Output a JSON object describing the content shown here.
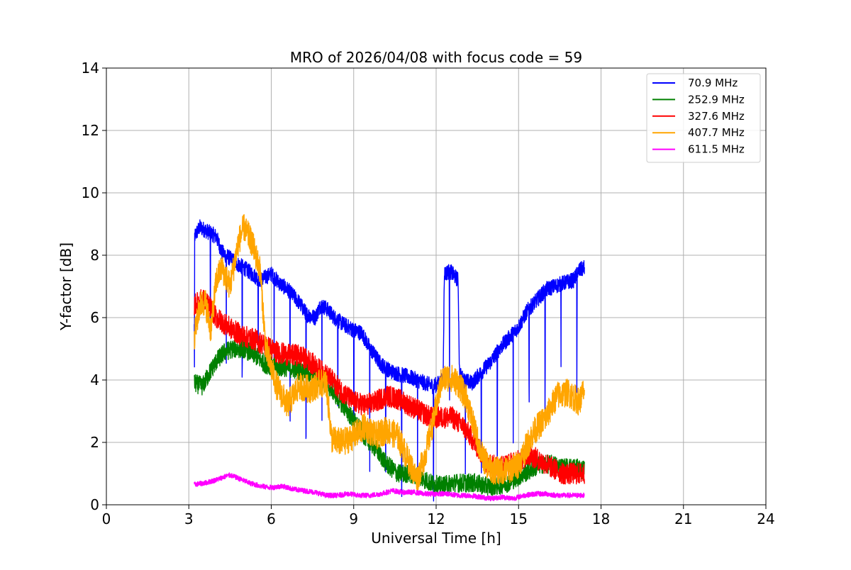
{
  "chart_data": {
    "type": "line",
    "title": "MRO of 2026/04/08 with focus code = 59",
    "xlabel": "Universal Time [h]",
    "ylabel": "Y-factor [dB]",
    "xlim": [
      0,
      24
    ],
    "ylim": [
      0,
      14
    ],
    "xticks": [
      0,
      3,
      6,
      9,
      12,
      15,
      18,
      21,
      24
    ],
    "yticks": [
      0,
      2,
      4,
      6,
      8,
      10,
      12,
      14
    ],
    "grid": true,
    "legend_position": "top-right",
    "series": [
      {
        "name": " 70.9 MHz",
        "color": "#0000ff",
        "noise": 0.25,
        "dips": 0.58,
        "x": [
          3.2,
          3.4,
          3.6,
          3.8,
          4.0,
          4.2,
          4.5,
          4.8,
          5.0,
          5.3,
          5.6,
          6.0,
          6.3,
          6.6,
          7.0,
          7.3,
          7.6,
          7.8,
          8.0,
          8.3,
          8.6,
          9.0,
          9.3,
          9.6,
          10.0,
          10.3,
          10.6,
          11.0,
          11.3,
          11.6,
          11.9,
          12.1,
          12.25,
          12.3,
          12.5,
          12.8,
          12.85,
          13.0,
          13.3,
          13.6,
          14.0,
          14.3,
          14.6,
          15.0,
          15.3,
          15.6,
          16.0,
          16.3,
          16.6,
          17.0,
          17.2,
          17.4
        ],
        "y": [
          8.6,
          8.9,
          8.8,
          8.7,
          8.6,
          8.1,
          7.9,
          7.7,
          7.6,
          7.4,
          7.2,
          7.4,
          7.1,
          6.9,
          6.5,
          6.1,
          6.0,
          6.4,
          6.3,
          6.0,
          5.8,
          5.6,
          5.5,
          5.0,
          4.5,
          4.3,
          4.2,
          4.1,
          4.0,
          3.9,
          3.8,
          3.9,
          4.0,
          7.4,
          7.5,
          7.2,
          4.2,
          4.0,
          3.9,
          4.2,
          4.6,
          5.0,
          5.3,
          5.7,
          6.2,
          6.5,
          6.9,
          7.0,
          7.1,
          7.2,
          7.5,
          7.6
        ]
      },
      {
        "name": "252.9 MHz",
        "color": "#008000",
        "noise": 0.3,
        "dips": 0,
        "x": [
          3.2,
          3.5,
          3.8,
          4.0,
          4.3,
          4.6,
          5.0,
          5.4,
          5.8,
          6.2,
          6.6,
          7.0,
          7.4,
          7.8,
          8.2,
          8.6,
          9.0,
          9.4,
          9.8,
          10.2,
          10.6,
          11.0,
          11.4,
          11.8,
          12.2,
          12.6,
          13.0,
          13.4,
          13.8,
          14.2,
          14.6,
          15.0,
          15.4,
          15.8,
          16.2,
          16.6,
          17.0,
          17.4
        ],
        "y": [
          3.9,
          3.8,
          4.3,
          4.6,
          4.9,
          5.0,
          5.0,
          4.8,
          4.5,
          4.4,
          4.4,
          4.3,
          4.2,
          4.0,
          3.7,
          3.2,
          2.7,
          2.2,
          1.8,
          1.3,
          1.0,
          1.0,
          0.9,
          0.7,
          0.6,
          0.7,
          0.7,
          0.7,
          0.6,
          0.6,
          0.7,
          0.9,
          1.1,
          1.3,
          1.3,
          1.2,
          1.2,
          1.1
        ]
      },
      {
        "name": "327.6 MHz",
        "color": "#ff0000",
        "noise": 0.35,
        "dips": 0,
        "x": [
          3.2,
          3.5,
          3.8,
          4.0,
          4.3,
          4.6,
          5.0,
          5.4,
          5.8,
          6.2,
          6.6,
          7.0,
          7.4,
          7.8,
          8.2,
          8.6,
          9.0,
          9.4,
          9.8,
          10.2,
          10.6,
          11.0,
          11.4,
          11.8,
          12.2,
          12.6,
          13.0,
          13.4,
          13.8,
          14.2,
          14.6,
          15.0,
          15.4,
          15.8,
          16.2,
          16.6,
          17.0,
          17.4
        ],
        "y": [
          6.4,
          6.6,
          6.3,
          6.0,
          5.8,
          5.6,
          5.4,
          5.3,
          5.1,
          4.9,
          4.8,
          4.8,
          4.6,
          4.3,
          4.0,
          3.6,
          3.3,
          3.2,
          3.3,
          3.5,
          3.4,
          3.2,
          3.0,
          2.8,
          2.8,
          2.8,
          2.5,
          2.0,
          1.4,
          1.2,
          1.3,
          1.4,
          1.6,
          1.4,
          1.2,
          1.0,
          1.0,
          1.0
        ]
      },
      {
        "name": "407.7 MHz",
        "color": "#ffa500",
        "noise": 0.45,
        "dips": 0,
        "x": [
          3.2,
          3.4,
          3.6,
          3.8,
          4.0,
          4.2,
          4.5,
          4.8,
          5.0,
          5.3,
          5.6,
          5.8,
          6.2,
          6.6,
          7.0,
          7.4,
          7.8,
          8.0,
          8.2,
          8.6,
          9.0,
          9.4,
          9.8,
          10.2,
          10.6,
          11.0,
          11.3,
          11.6,
          11.9,
          12.2,
          12.5,
          12.8,
          13.1,
          13.4,
          13.7,
          14.0,
          14.3,
          14.6,
          15.0,
          15.3,
          15.6,
          16.0,
          16.4,
          16.8,
          17.2,
          17.4
        ],
        "y": [
          5.4,
          6.4,
          6.5,
          5.6,
          7.2,
          7.6,
          7.0,
          8.4,
          8.9,
          8.4,
          7.5,
          5.0,
          3.8,
          3.2,
          3.8,
          3.7,
          3.9,
          3.9,
          2.1,
          2.0,
          2.2,
          2.5,
          2.2,
          2.4,
          2.2,
          1.4,
          0.8,
          1.6,
          2.7,
          4.0,
          4.1,
          3.9,
          3.4,
          2.4,
          1.5,
          1.1,
          1.1,
          1.1,
          1.3,
          1.9,
          2.4,
          2.8,
          3.5,
          3.6,
          3.3,
          3.7
        ]
      },
      {
        "name": "611.5 MHz",
        "color": "#ff00ff",
        "noise": 0.08,
        "dips": 0,
        "x": [
          3.2,
          3.6,
          4.0,
          4.3,
          4.5,
          4.8,
          5.2,
          5.6,
          6.0,
          6.4,
          6.8,
          7.2,
          7.6,
          8.0,
          8.4,
          8.8,
          9.2,
          9.6,
          10.0,
          10.4,
          10.8,
          11.2,
          11.6,
          12.0,
          12.4,
          12.8,
          13.2,
          13.6,
          14.0,
          14.4,
          14.8,
          15.2,
          15.6,
          16.0,
          16.4,
          16.8,
          17.2,
          17.4
        ],
        "y": [
          0.65,
          0.7,
          0.8,
          0.9,
          0.95,
          0.85,
          0.7,
          0.6,
          0.55,
          0.6,
          0.5,
          0.45,
          0.4,
          0.3,
          0.3,
          0.35,
          0.3,
          0.3,
          0.35,
          0.45,
          0.4,
          0.4,
          0.35,
          0.35,
          0.35,
          0.3,
          0.3,
          0.25,
          0.2,
          0.25,
          0.2,
          0.3,
          0.35,
          0.35,
          0.3,
          0.3,
          0.3,
          0.3
        ]
      }
    ]
  }
}
